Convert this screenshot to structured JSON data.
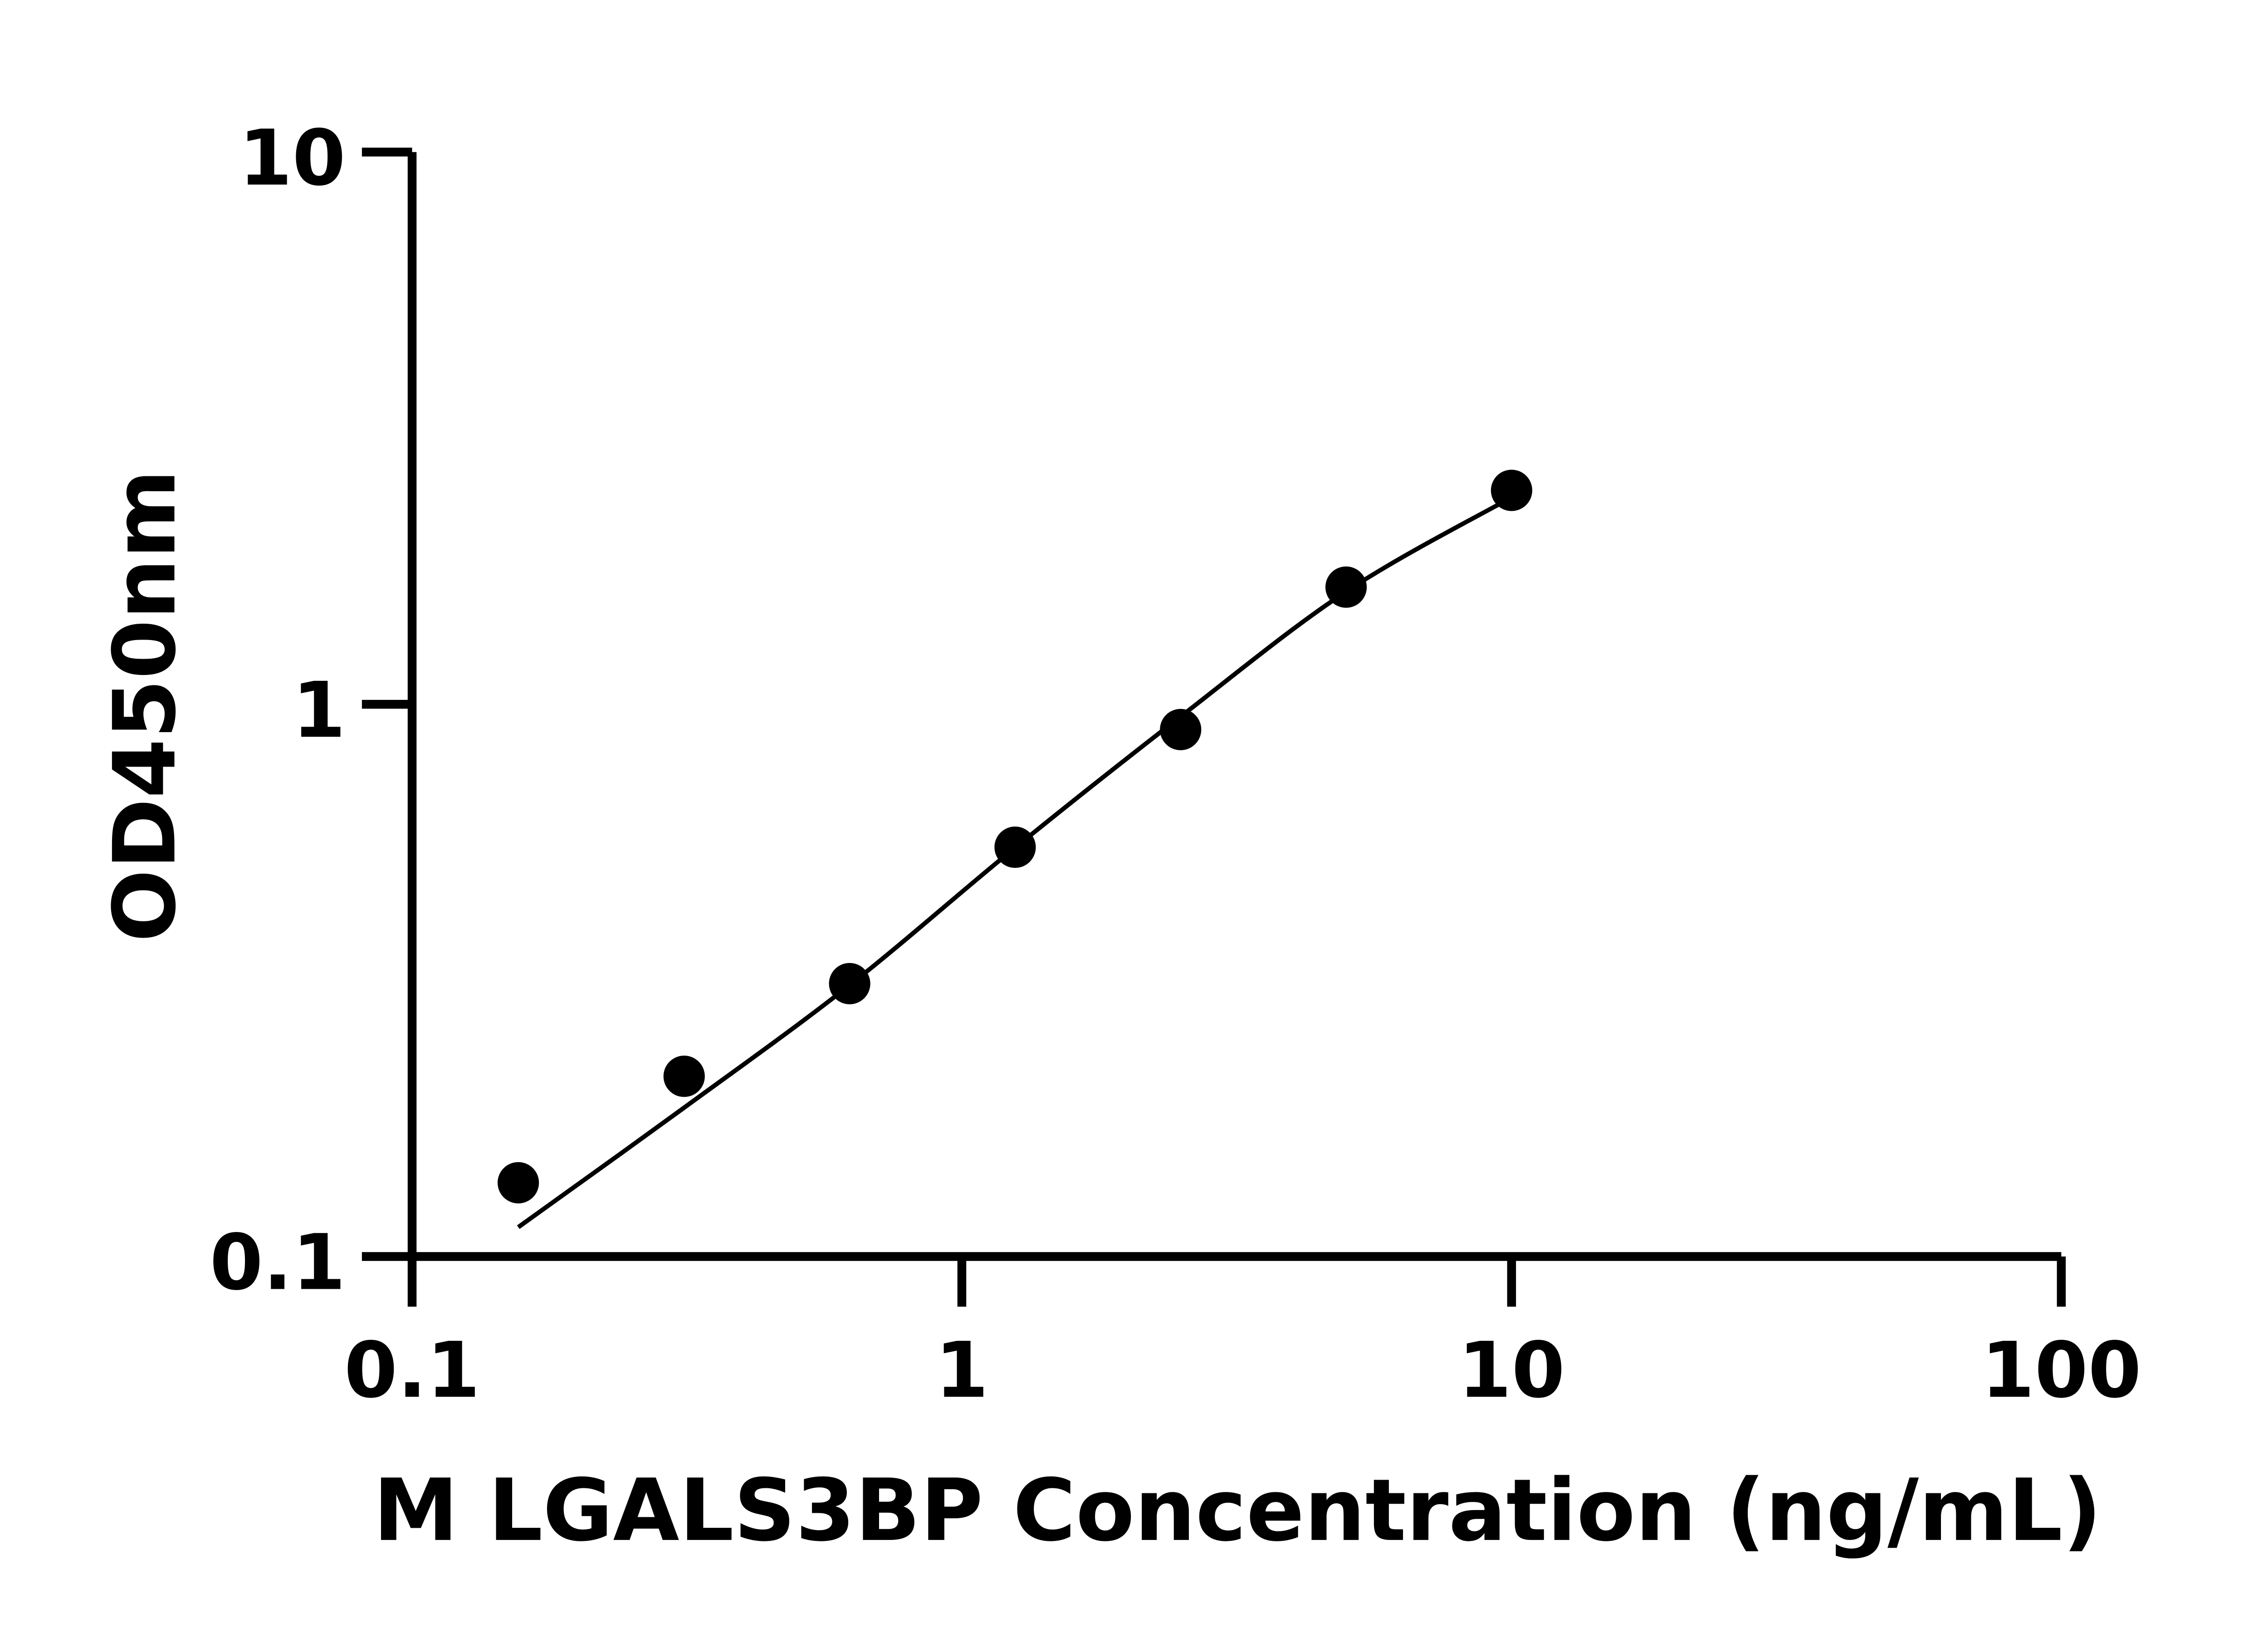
{
  "chart_data": {
    "type": "scatter",
    "title": "",
    "xlabel": "M LGALS3BP Concentration (ng/mL)",
    "ylabel": "OD450nm",
    "xscale": "log",
    "yscale": "log",
    "xlim": [
      0.1,
      100
    ],
    "ylim": [
      0.1,
      10
    ],
    "xticks": [
      "0.1",
      "1",
      "10",
      "100"
    ],
    "yticks": [
      "0.1",
      "1",
      "10"
    ],
    "grid": false,
    "legend": "none",
    "series": [
      {
        "kind": "points",
        "color": "#000000",
        "x": [
          0.156,
          0.3125,
          0.625,
          1.25,
          2.5,
          5,
          10
        ],
        "y": [
          0.136,
          0.212,
          0.312,
          0.551,
          0.9,
          1.63,
          2.44
        ]
      },
      {
        "kind": "fit-curve",
        "color": "#000000",
        "x": [
          0.156,
          0.3125,
          0.625,
          1.25,
          2.5,
          5,
          10
        ],
        "y": [
          0.113,
          0.186,
          0.31,
          0.55,
          0.95,
          1.6,
          2.37
        ]
      }
    ]
  }
}
